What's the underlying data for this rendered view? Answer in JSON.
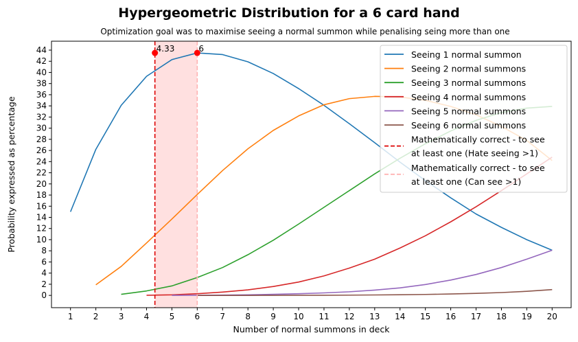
{
  "chart_data": {
    "type": "line",
    "title": "Hypergeometric Distribution for a 6 card hand",
    "subtitle": "Optimization goal was to maximise seeing a normal summon while penalising seing more than one",
    "xlabel": "Number of normal summons in deck",
    "ylabel": "Probability expressed as percentage",
    "xlim": [
      0.25,
      20.75
    ],
    "ylim": [
      -2.2,
      45.6
    ],
    "xticks": [
      1,
      2,
      3,
      4,
      5,
      6,
      7,
      8,
      9,
      10,
      11,
      12,
      13,
      14,
      15,
      16,
      17,
      18,
      19,
      20
    ],
    "yticks": [
      0,
      2,
      4,
      6,
      8,
      10,
      12,
      14,
      16,
      18,
      20,
      22,
      24,
      26,
      28,
      30,
      32,
      34,
      36,
      38,
      40,
      42,
      44
    ],
    "grid": false,
    "legend_position": "top-right",
    "series": [
      {
        "name": "Seeing 1 normal summon",
        "color": "#1f77b4",
        "x": [
          1,
          2,
          3,
          4,
          5,
          6,
          7,
          8,
          9,
          10,
          11,
          12,
          13,
          14,
          15,
          16,
          17,
          18,
          19,
          20
        ],
        "values": [
          15.0,
          26.2,
          34.1,
          39.3,
          42.3,
          43.5,
          43.2,
          41.9,
          39.8,
          37.1,
          34.1,
          30.8,
          27.4,
          23.9,
          20.6,
          17.5,
          14.6,
          12.2,
          10.0,
          8.1
        ]
      },
      {
        "name": "Seeing 2 normal summons",
        "color": "#ff7f0e",
        "x": [
          2,
          3,
          4,
          5,
          6,
          7,
          8,
          9,
          10,
          11,
          12,
          13,
          14,
          15,
          16,
          17,
          18,
          19,
          20
        ],
        "values": [
          1.9,
          5.2,
          9.4,
          13.7,
          18.1,
          22.4,
          26.3,
          29.6,
          32.2,
          34.2,
          35.3,
          35.7,
          35.6,
          35.0,
          33.9,
          32.4,
          30.3,
          27.8,
          24.2
        ]
      },
      {
        "name": "Seeing 3 normal summons",
        "color": "#2ca02c",
        "x": [
          3,
          4,
          5,
          6,
          7,
          8,
          9,
          10,
          11,
          12,
          13,
          14,
          15,
          16,
          17,
          18,
          19,
          20
        ],
        "values": [
          0.2,
          0.8,
          1.7,
          3.2,
          5.0,
          7.3,
          9.9,
          12.8,
          15.8,
          18.8,
          21.8,
          24.6,
          27.2,
          29.5,
          31.4,
          32.8,
          33.6,
          33.9
        ]
      },
      {
        "name": "Seeing 4 normal summons",
        "color": "#d62728",
        "x": [
          4,
          5,
          6,
          7,
          8,
          9,
          10,
          11,
          12,
          13,
          14,
          15,
          16,
          17,
          18,
          19,
          20
        ],
        "values": [
          0.02,
          0.1,
          0.3,
          0.6,
          1.0,
          1.6,
          2.4,
          3.5,
          4.9,
          6.5,
          8.5,
          10.7,
          13.2,
          15.9,
          18.8,
          21.8,
          24.8
        ]
      },
      {
        "name": "Seeing 5 normal summons",
        "color": "#9467bd",
        "x": [
          5,
          6,
          7,
          8,
          9,
          10,
          11,
          12,
          13,
          14,
          15,
          16,
          17,
          18,
          19,
          20
        ],
        "values": [
          0.01,
          0.03,
          0.06,
          0.1,
          0.2,
          0.3,
          0.45,
          0.65,
          0.95,
          1.35,
          1.95,
          2.75,
          3.75,
          5.0,
          6.5,
          8.1
        ]
      },
      {
        "name": "Seeing 6 normal summons",
        "color": "#8c564b",
        "x": [
          6,
          7,
          8,
          9,
          10,
          11,
          12,
          13,
          14,
          15,
          16,
          17,
          18,
          19,
          20
        ],
        "values": [
          0.0,
          0.0,
          0.0,
          0.01,
          0.02,
          0.03,
          0.05,
          0.08,
          0.12,
          0.17,
          0.25,
          0.36,
          0.51,
          0.73,
          1.04
        ]
      }
    ],
    "vlines": [
      {
        "name": "Mathematically correct - to see\n at least one (Hate seeing >1)",
        "x": 4.33,
        "color": "#dd0000",
        "style": "dashed",
        "label": "4.33",
        "marker_y": 43.5
      },
      {
        "name": "Mathematically correct - to see\n at least one (Can see >1)",
        "x": 6,
        "color": "#ffb3b3",
        "style": "dashed",
        "label": "6",
        "marker_y": 43.5
      }
    ],
    "shaded_region": {
      "x": [
        4.33,
        6
      ],
      "color": "#ffe0e0"
    }
  }
}
